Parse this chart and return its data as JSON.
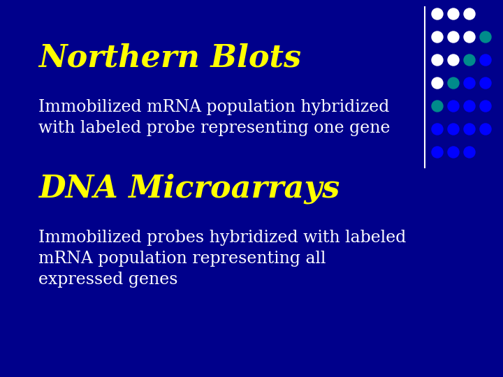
{
  "background_color": "#00008B",
  "title1": "Northern Blots",
  "title1_color": "#FFFF00",
  "title1_fontsize": 32,
  "body1_line1": "Immobilized m​RNA population hybridized",
  "body1_line2": "with labeled probe representing one gene",
  "body1_color": "#FFFFFF",
  "body1_fontsize": 17,
  "title2": "DNA Microarrays",
  "title2_color": "#FFFF00",
  "title2_fontsize": 32,
  "body2_line1": "Immobilized probes hybridized with labeled",
  "body2_line2": "m​RNA population representing all",
  "body2_line3": "expressed genes",
  "body2_color": "#FFFFFF",
  "body2_fontsize": 17,
  "dot_grid_cols": 4,
  "dot_grid_rows": 7,
  "dot_colors": [
    [
      "#FFFFFF",
      "#FFFFFF",
      "#FFFFFF",
      "none"
    ],
    [
      "#FFFFFF",
      "#FFFFFF",
      "#FFFFFF",
      "#008B8B"
    ],
    [
      "#FFFFFF",
      "#FFFFFF",
      "#008B8B",
      "#0000FF"
    ],
    [
      "#FFFFFF",
      "#008B8B",
      "#0000FF",
      "#0000FF"
    ],
    [
      "#008B8B",
      "#0000FF",
      "#0000FF",
      "#0000FF"
    ],
    [
      "#0000FF",
      "#0000FF",
      "#0000FF",
      "#0000FF"
    ],
    [
      "#0000FF",
      "#0000FF",
      "#0000FF",
      "none"
    ]
  ]
}
